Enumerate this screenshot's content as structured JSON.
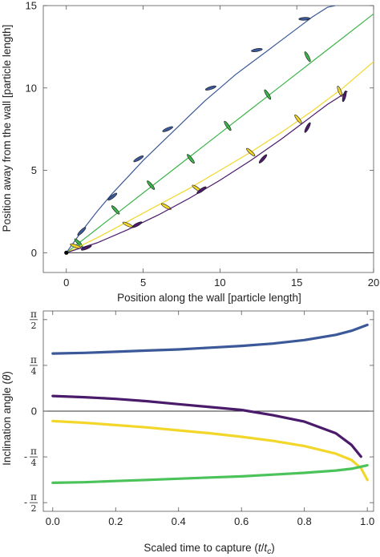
{
  "chart_data": [
    {
      "type": "line",
      "xlabel": "Position along the wall [particle length]",
      "ylabel": "Position away from the wall [particle length]",
      "xlim": [
        -1.5,
        20
      ],
      "ylim": [
        -1.2,
        15
      ],
      "xticks": [
        0,
        5,
        10,
        15,
        20
      ],
      "yticks": [
        0,
        5,
        10,
        15
      ],
      "grid": false,
      "wall_y": 0,
      "start_point": [
        0,
        0
      ],
      "series": [
        {
          "color": "#3b5998",
          "x": [
            0,
            1,
            2,
            3,
            4,
            5,
            6,
            7,
            8,
            9,
            10,
            11,
            12,
            13,
            14,
            15,
            16,
            17,
            17.5
          ],
          "y": [
            0,
            1.3,
            2.5,
            3.6,
            4.6,
            5.6,
            6.5,
            7.4,
            8.3,
            9.2,
            10.0,
            10.8,
            11.5,
            12.2,
            12.9,
            13.6,
            14.3,
            14.9,
            15.0
          ],
          "markers": [
            {
              "x": 1.0,
              "y": 1.3,
              "angle_deg": 45
            },
            {
              "x": 3.0,
              "y": 3.4,
              "angle_deg": 38
            },
            {
              "x": 4.7,
              "y": 5.7,
              "angle_deg": 30
            },
            {
              "x": 6.6,
              "y": 7.5,
              "angle_deg": 24
            },
            {
              "x": 9.4,
              "y": 10.0,
              "angle_deg": 18
            },
            {
              "x": 12.4,
              "y": 12.3,
              "angle_deg": 10
            },
            {
              "x": 15.5,
              "y": 14.2,
              "angle_deg": 3
            }
          ]
        },
        {
          "color": "#3cb44b",
          "x": [
            0,
            2,
            4,
            6,
            8,
            10,
            12,
            14,
            16,
            18,
            20
          ],
          "y": [
            0,
            1.45,
            2.9,
            4.35,
            5.8,
            7.25,
            8.7,
            10.15,
            11.6,
            13.05,
            14.5
          ],
          "markers": [
            {
              "x": 0.8,
              "y": 0.6,
              "angle_deg": -45
            },
            {
              "x": 3.2,
              "y": 2.6,
              "angle_deg": -48
            },
            {
              "x": 5.5,
              "y": 4.1,
              "angle_deg": -50
            },
            {
              "x": 8.1,
              "y": 5.7,
              "angle_deg": -52
            },
            {
              "x": 10.5,
              "y": 7.7,
              "angle_deg": -55
            },
            {
              "x": 13.1,
              "y": 9.6,
              "angle_deg": -58
            },
            {
              "x": 15.7,
              "y": 11.9,
              "angle_deg": -62
            }
          ]
        },
        {
          "color": "#f2d72a",
          "x": [
            0,
            2,
            4,
            6,
            8,
            10,
            12,
            14,
            16,
            18,
            20
          ],
          "y": [
            0,
            0.9,
            1.9,
            2.9,
            3.9,
            5.0,
            6.1,
            7.3,
            8.6,
            10.0,
            11.6
          ],
          "markers": [
            {
              "x": 0.6,
              "y": 0.4,
              "angle_deg": -20
            },
            {
              "x": 4.0,
              "y": 1.7,
              "angle_deg": -25
            },
            {
              "x": 6.5,
              "y": 2.8,
              "angle_deg": -30
            },
            {
              "x": 8.5,
              "y": 3.9,
              "angle_deg": -35
            },
            {
              "x": 12.0,
              "y": 6.1,
              "angle_deg": -42
            },
            {
              "x": 15.1,
              "y": 8.1,
              "angle_deg": -52
            },
            {
              "x": 17.8,
              "y": 9.8,
              "angle_deg": -68
            }
          ]
        },
        {
          "color": "#4a1a6b",
          "x": [
            0,
            2,
            4,
            6,
            8,
            10,
            12,
            14,
            16,
            17,
            18,
            18.3
          ],
          "y": [
            0,
            0.6,
            1.4,
            2.3,
            3.3,
            4.4,
            5.6,
            6.9,
            8.3,
            9.0,
            9.6,
            9.8
          ],
          "markers": [
            {
              "x": 1.3,
              "y": 0.3,
              "angle_deg": 22
            },
            {
              "x": 4.6,
              "y": 1.7,
              "angle_deg": 28
            },
            {
              "x": 8.8,
              "y": 3.8,
              "angle_deg": 35
            },
            {
              "x": 12.8,
              "y": 5.7,
              "angle_deg": 48
            },
            {
              "x": 15.7,
              "y": 7.6,
              "angle_deg": 62
            },
            {
              "x": 18.1,
              "y": 9.5,
              "angle_deg": 75
            }
          ]
        }
      ]
    },
    {
      "type": "line",
      "xlabel": "Scaled time to capture (t/t_c)",
      "ylabel": "Inclination angle (θ)",
      "xlim": [
        -0.03,
        1.02
      ],
      "ylim": [
        -1.72,
        1.72
      ],
      "xticks": [
        0.0,
        0.2,
        0.4,
        0.6,
        0.8,
        1.0
      ],
      "xtick_labels": [
        "0.0",
        "0.2",
        "0.4",
        "0.6",
        "0.8",
        "1.0"
      ],
      "yticks": [
        {
          "value": 1.5708,
          "label": "π/2"
        },
        {
          "value": 0.7854,
          "label": "π/4"
        },
        {
          "value": 0,
          "label": "0"
        },
        {
          "value": -0.7854,
          "label": "-π/4"
        },
        {
          "value": -1.5708,
          "label": "-π/2"
        }
      ],
      "grid": false,
      "zero_line": true,
      "series": [
        {
          "color": "#3b5998",
          "x": [
            0,
            0.1,
            0.2,
            0.3,
            0.4,
            0.5,
            0.6,
            0.7,
            0.8,
            0.9,
            0.95,
            1.0
          ],
          "y": [
            0.99,
            1.0,
            1.02,
            1.04,
            1.06,
            1.09,
            1.12,
            1.16,
            1.22,
            1.31,
            1.38,
            1.48
          ]
        },
        {
          "color": "#4a1a6b",
          "x": [
            0,
            0.1,
            0.2,
            0.3,
            0.4,
            0.5,
            0.6,
            0.7,
            0.8,
            0.9,
            0.95,
            0.98
          ],
          "y": [
            0.26,
            0.24,
            0.21,
            0.17,
            0.12,
            0.07,
            0.02,
            -0.07,
            -0.18,
            -0.38,
            -0.58,
            -0.78
          ]
        },
        {
          "color": "#f2d72a",
          "x": [
            0,
            0.1,
            0.2,
            0.3,
            0.4,
            0.5,
            0.6,
            0.7,
            0.8,
            0.9,
            0.95,
            0.98,
            1.0
          ],
          "y": [
            -0.17,
            -0.2,
            -0.24,
            -0.28,
            -0.33,
            -0.38,
            -0.44,
            -0.51,
            -0.6,
            -0.73,
            -0.84,
            -0.98,
            -1.18
          ]
        },
        {
          "color": "#4cc35a",
          "x": [
            0,
            0.1,
            0.2,
            0.3,
            0.4,
            0.5,
            0.6,
            0.7,
            0.8,
            0.9,
            0.95,
            1.0
          ],
          "y": [
            -1.23,
            -1.22,
            -1.2,
            -1.18,
            -1.16,
            -1.14,
            -1.12,
            -1.09,
            -1.06,
            -1.02,
            -0.99,
            -0.93
          ]
        }
      ]
    }
  ]
}
